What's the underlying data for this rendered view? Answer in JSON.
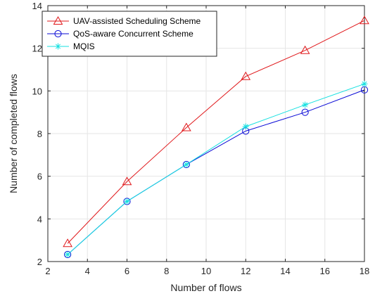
{
  "chart_data": {
    "type": "line",
    "xlabel": "Number of flows",
    "ylabel": "Number of completed flows",
    "xlim": [
      2,
      18
    ],
    "ylim": [
      2,
      14
    ],
    "xticks": [
      2,
      4,
      6,
      8,
      10,
      12,
      14,
      16,
      18
    ],
    "yticks": [
      2,
      4,
      6,
      8,
      10,
      12,
      14
    ],
    "x": [
      3,
      6,
      9,
      12,
      15,
      18
    ],
    "grid": true,
    "legend_position": "top-left",
    "series": [
      {
        "name": "UAV-assisted Scheduling Scheme",
        "color": "#e0181b",
        "marker": "triangle",
        "values": [
          2.85,
          5.75,
          8.28,
          10.68,
          11.9,
          13.3
        ]
      },
      {
        "name": "QoS-aware Concurrent Scheme",
        "color": "#0a0ad6",
        "marker": "circle",
        "values": [
          2.33,
          4.82,
          6.55,
          8.12,
          9.0,
          10.05
        ]
      },
      {
        "name": "MQIS",
        "color": "#16e0e0",
        "marker": "asterisk",
        "values": [
          2.33,
          4.82,
          6.55,
          8.33,
          9.35,
          10.33
        ]
      }
    ]
  }
}
